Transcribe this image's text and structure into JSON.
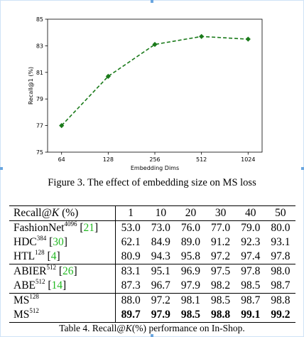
{
  "chart_data": {
    "type": "line",
    "x": [
      64,
      128,
      256,
      512,
      1024
    ],
    "x_tick_labels": [
      "64",
      "128",
      "256",
      "512",
      "1024"
    ],
    "x_scale": "log2",
    "y": [
      77.0,
      80.7,
      83.1,
      83.7,
      83.5
    ],
    "xlabel": "Embedding Dims",
    "ylabel": "Recall@1 (%)",
    "ylim": [
      75,
      85
    ],
    "y_ticks": [
      75,
      77,
      79,
      81,
      83,
      85
    ],
    "line_color": "#1a7a1a",
    "line_style": "dashed",
    "marker": "diamond",
    "grid": false
  },
  "figure_caption": "Figure 3. The effect of embedding size on MS loss",
  "table": {
    "header": {
      "prefix": "Recall@",
      "k": "K",
      "suffix": " (%)",
      "columns": [
        "1",
        "10",
        "20",
        "30",
        "40",
        "50"
      ]
    },
    "rows": [
      {
        "method": "FashionNet",
        "sup": "4096",
        "cite": "21",
        "values": [
          "53.0",
          "73.0",
          "76.0",
          "77.0",
          "79.0",
          "80.0"
        ]
      },
      {
        "method": "HDC",
        "sup": "384",
        "cite": "30",
        "values": [
          "62.1",
          "84.9",
          "89.0",
          "91.2",
          "92.3",
          "93.1"
        ]
      },
      {
        "method": "HTL",
        "sup": "128",
        "cite": "4",
        "values": [
          "80.9",
          "94.3",
          "95.8",
          "97.2",
          "97.4",
          "97.8"
        ]
      },
      {
        "method": "ABIER",
        "sup": "512",
        "cite": "26",
        "values": [
          "83.1",
          "95.1",
          "96.9",
          "97.5",
          "97.8",
          "98.0"
        ]
      },
      {
        "method": "ABE",
        "sup": "512",
        "cite": "14",
        "values": [
          "87.3",
          "96.7",
          "97.9",
          "98.2",
          "98.5",
          "98.7"
        ]
      },
      {
        "method": "MS",
        "sup": "128",
        "cite": "",
        "values": [
          "88.0",
          "97.2",
          "98.1",
          "98.5",
          "98.7",
          "98.8"
        ]
      },
      {
        "method": "MS",
        "sup": "512",
        "cite": "",
        "values": [
          "89.7",
          "97.9",
          "98.5",
          "98.8",
          "99.1",
          "99.2"
        ]
      }
    ]
  },
  "table_caption": {
    "prefix": "Table 4. Recall@",
    "k": "K",
    "paren": "(%)",
    "suffix": " performance on In-Shop."
  }
}
